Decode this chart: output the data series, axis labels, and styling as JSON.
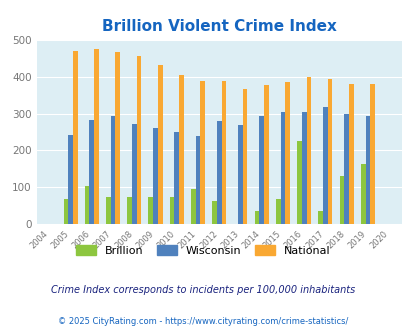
{
  "title": "Brillion Violent Crime Index",
  "years": [
    2004,
    2005,
    2006,
    2007,
    2008,
    2009,
    2010,
    2011,
    2012,
    2013,
    2014,
    2015,
    2016,
    2017,
    2018,
    2019,
    2020
  ],
  "brillion": [
    0,
    70,
    105,
    73,
    73,
    73,
    73,
    95,
    63,
    0,
    37,
    68,
    225,
    37,
    132,
    163,
    0
  ],
  "wisconsin": [
    0,
    243,
    283,
    292,
    272,
    260,
    250,
    240,
    280,
    270,
    292,
    305,
    305,
    318,
    298,
    293,
    0
  ],
  "national": [
    0,
    469,
    474,
    467,
    455,
    432,
    405,
    387,
    387,
    367,
    377,
    384,
    398,
    394,
    381,
    379,
    0
  ],
  "brillion_color": "#8dc63f",
  "wisconsin_color": "#4f81bd",
  "national_color": "#f9a832",
  "bg_color": "#ddeef4",
  "title_color": "#1565c0",
  "ylabel_max": 500,
  "yticks": [
    0,
    100,
    200,
    300,
    400,
    500
  ],
  "subtitle": "Crime Index corresponds to incidents per 100,000 inhabitants",
  "footer": "© 2025 CityRating.com - https://www.cityrating.com/crime-statistics/",
  "subtitle_color": "#1a237e",
  "footer_color": "#1565c0"
}
